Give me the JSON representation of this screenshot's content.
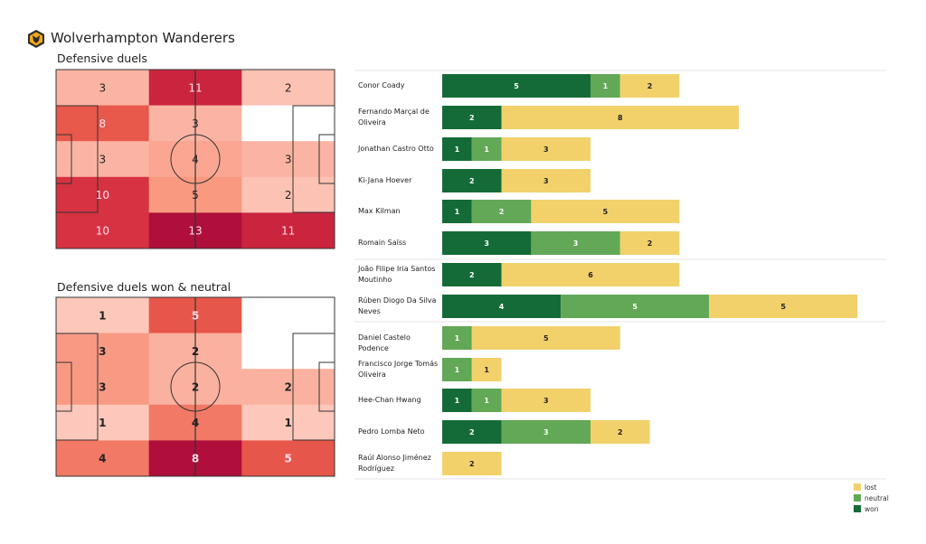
{
  "header": {
    "title": "Wolverhampton Wanderers",
    "logo": "wolves-crest"
  },
  "chart_data": [
    {
      "type": "heatmap",
      "title": "Defensive duels",
      "rows": 5,
      "cols": 3,
      "values": [
        [
          3,
          11,
          2
        ],
        [
          8,
          3,
          null
        ],
        [
          3,
          4,
          3
        ],
        [
          10,
          5,
          2
        ],
        [
          10,
          13,
          11
        ]
      ],
      "colormap": "reds"
    },
    {
      "type": "heatmap",
      "title": "Defensive duels won & neutral",
      "rows": 5,
      "cols": 3,
      "values": [
        [
          1,
          5,
          null
        ],
        [
          3,
          2,
          null
        ],
        [
          3,
          2,
          2
        ],
        [
          1,
          4,
          1
        ],
        [
          4,
          8,
          5
        ]
      ],
      "colormap": "reds"
    },
    {
      "type": "bar",
      "orientation": "horizontal",
      "stacked": true,
      "categories": [
        "Conor  Coady",
        "Fernando Marçal de Oliveira",
        "Jonathan Castro Otto",
        "Ki-Jana Hoever",
        "Max Kilman",
        "Romain Saïss",
        "João Filipe Iria Santos Moutinho",
        "Rúben Diogo Da Silva Neves",
        "Daniel Castelo Podence",
        "Francisco Jorge Tomás Oliveira",
        "Hee-Chan Hwang",
        "Pedro Lomba Neto",
        "Raúl Alonso Jiménez Rodríguez"
      ],
      "groups_after": [
        5,
        7
      ],
      "series": [
        {
          "name": "won",
          "color": "#156b37",
          "values": [
            5,
            2,
            1,
            2,
            1,
            3,
            2,
            4,
            0,
            0,
            1,
            2,
            0
          ]
        },
        {
          "name": "neutral",
          "color": "#62a856",
          "values": [
            1,
            0,
            1,
            0,
            2,
            3,
            0,
            5,
            1,
            1,
            1,
            3,
            0
          ]
        },
        {
          "name": "lost",
          "color": "#f2d16b",
          "values": [
            2,
            8,
            3,
            3,
            5,
            2,
            6,
            5,
            5,
            1,
            3,
            2,
            2
          ]
        }
      ],
      "legend": "bottom-right"
    }
  ]
}
